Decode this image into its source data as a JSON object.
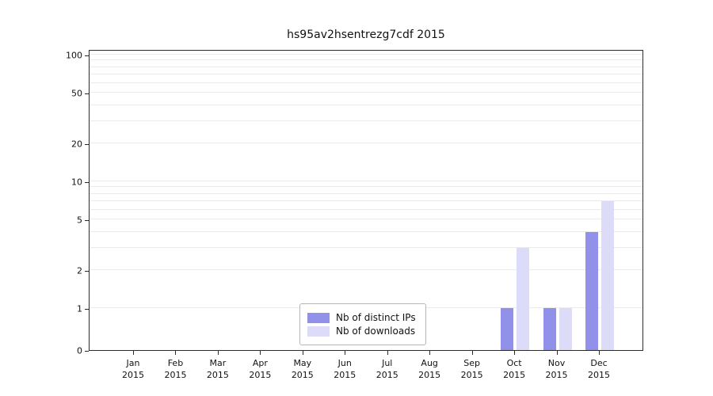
{
  "chart_data": {
    "type": "bar",
    "title": "hs95av2hsentrezg7cdf 2015",
    "categories": [
      "Jan 2015",
      "Feb 2015",
      "Mar 2015",
      "Apr 2015",
      "May 2015",
      "Jun 2015",
      "Jul 2015",
      "Aug 2015",
      "Sep 2015",
      "Oct 2015",
      "Nov 2015",
      "Dec 2015"
    ],
    "series": [
      {
        "name": "Nb of distinct IPs",
        "color": "#9191ea",
        "values": [
          0,
          0,
          0,
          0,
          0,
          0,
          0,
          0,
          0,
          1,
          1,
          4
        ]
      },
      {
        "name": "Nb of downloads",
        "color": "#dcdcf8",
        "values": [
          0,
          0,
          0,
          0,
          0,
          0,
          0,
          0,
          0,
          3,
          1,
          7
        ]
      }
    ],
    "yticks": [
      0,
      1,
      2,
      5,
      10,
      20,
      50,
      100
    ],
    "minor_gridlines": [
      1,
      2,
      3,
      4,
      5,
      6,
      7,
      8,
      9,
      10,
      20,
      30,
      40,
      50,
      60,
      70,
      80,
      90,
      100
    ],
    "scale": "symlog",
    "ylim": [
      0,
      100
    ],
    "grid": true,
    "legend_position": "bottom-center"
  }
}
